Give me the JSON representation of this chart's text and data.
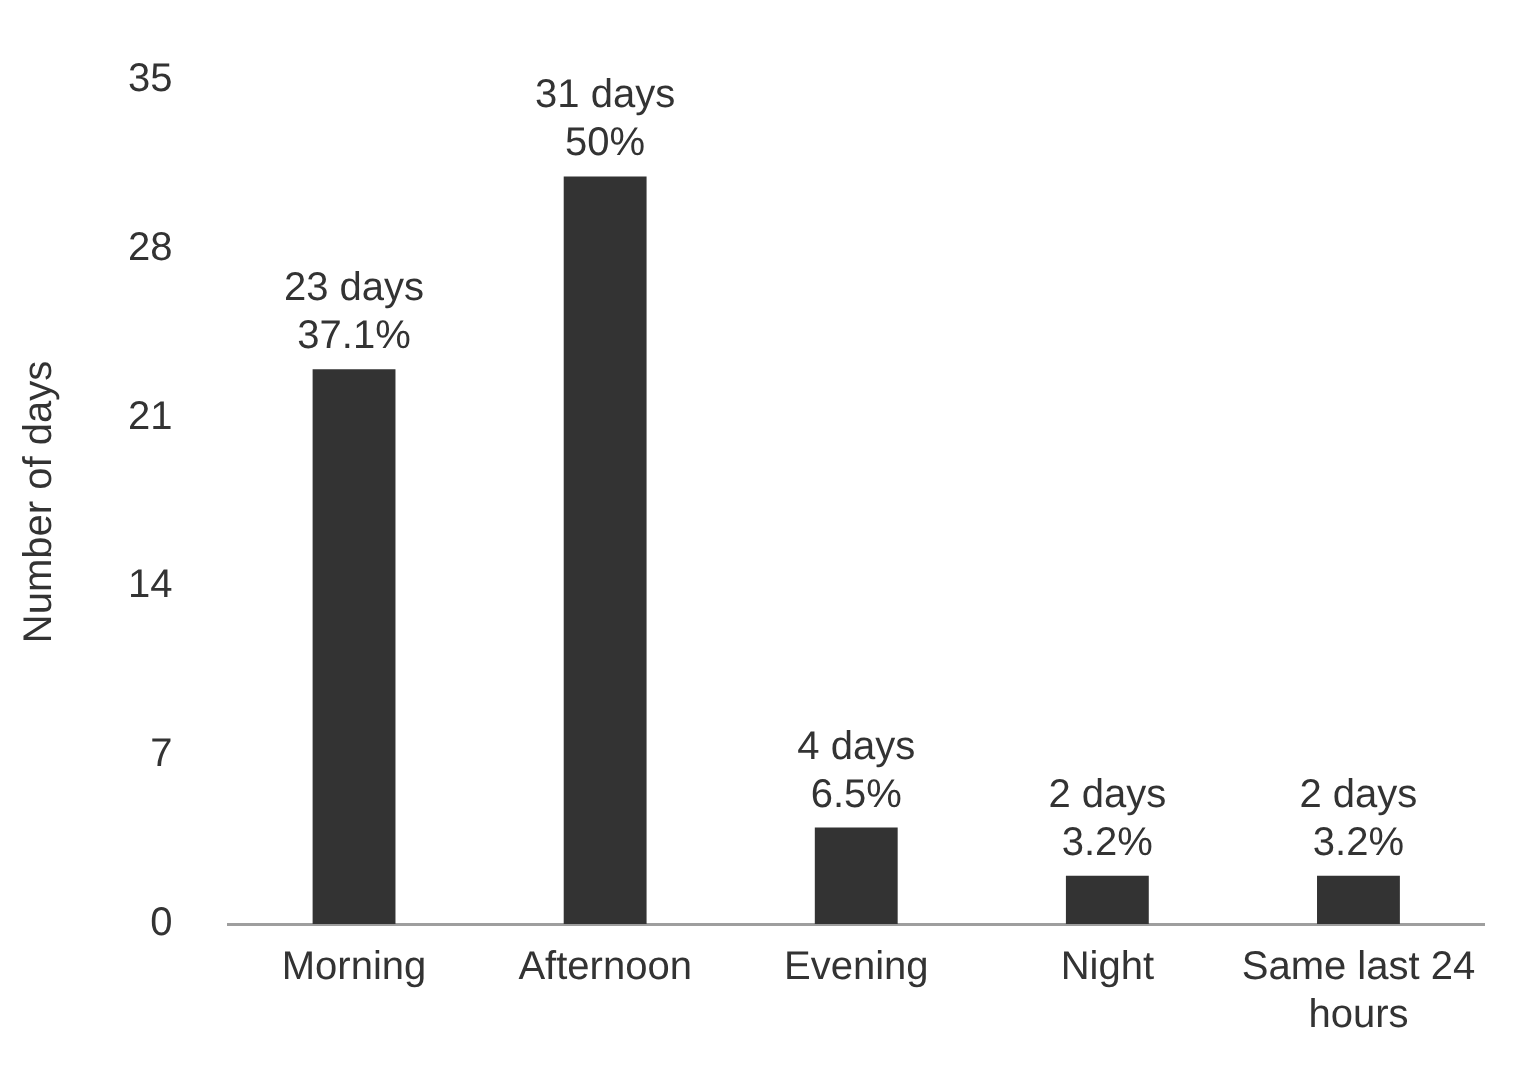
{
  "chart_data": {
    "type": "bar",
    "ylabel": "Number of days",
    "categories": [
      "Morning",
      "Afternoon",
      "Evening",
      "Night",
      "Same last 24 hours"
    ],
    "values": [
      23,
      31,
      4,
      2,
      2
    ],
    "color": "#333333",
    "value_labels": [
      "23 days\n37.1%",
      "31 days\n50%",
      "4 days\n6.5%",
      "2 days\n3.2%",
      "2 days\n3.2%"
    ],
    "ylim": [
      0,
      35
    ],
    "yticks": [
      0,
      7,
      14,
      21,
      28,
      35
    ],
    "grid": false,
    "legend": false
  }
}
